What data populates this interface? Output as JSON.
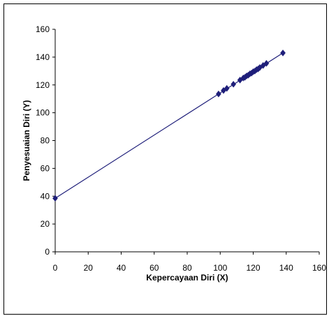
{
  "chart_data": {
    "type": "scatter",
    "xlabel": "Kepercayaan Diri (X)",
    "ylabel": "Penyesuaian Diri (Y)",
    "xlim": [
      0,
      160
    ],
    "ylim": [
      0,
      160
    ],
    "xticks": [
      "0",
      "20",
      "40",
      "60",
      "80",
      "100",
      "120",
      "140",
      "160"
    ],
    "yticks": [
      "0",
      "20",
      "40",
      "60",
      "80",
      "100",
      "120",
      "140",
      "160"
    ],
    "grid": false,
    "legend": "none",
    "series_color": "#1f1f7a",
    "marker": "diamond",
    "points": [
      {
        "x": 0,
        "y": 38.5
      },
      {
        "x": 99,
        "y": 113.5
      },
      {
        "x": 102,
        "y": 116
      },
      {
        "x": 104,
        "y": 117.5
      },
      {
        "x": 108,
        "y": 120.5
      },
      {
        "x": 112,
        "y": 123.5
      },
      {
        "x": 114,
        "y": 125
      },
      {
        "x": 115,
        "y": 125.5
      },
      {
        "x": 116,
        "y": 126.5
      },
      {
        "x": 117,
        "y": 127
      },
      {
        "x": 118,
        "y": 128
      },
      {
        "x": 119,
        "y": 128.5
      },
      {
        "x": 120,
        "y": 129.5
      },
      {
        "x": 121,
        "y": 130
      },
      {
        "x": 122,
        "y": 131
      },
      {
        "x": 123,
        "y": 131.5
      },
      {
        "x": 124,
        "y": 132.5
      },
      {
        "x": 126,
        "y": 134
      },
      {
        "x": 128,
        "y": 135.5
      },
      {
        "x": 138,
        "y": 143
      }
    ],
    "trendline": [
      {
        "x": 0,
        "y": 38.5
      },
      {
        "x": 99,
        "y": 113.5
      },
      {
        "x": 138,
        "y": 143
      }
    ]
  }
}
